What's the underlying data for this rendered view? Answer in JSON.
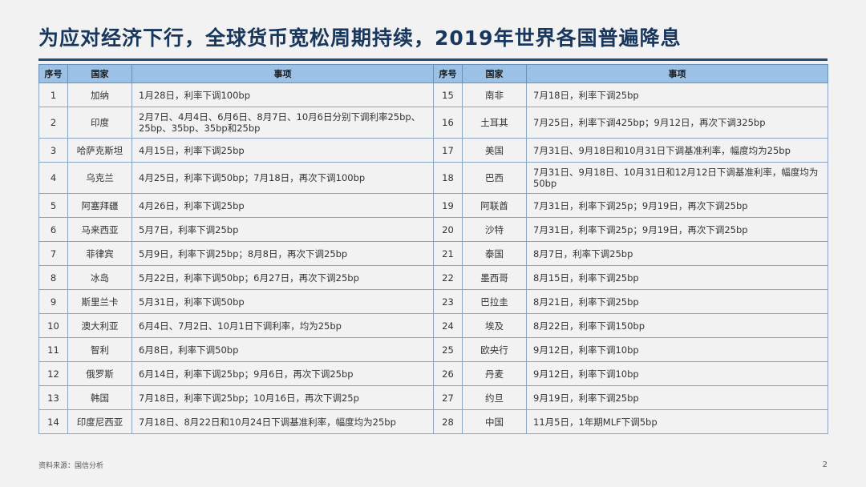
{
  "title": "为应对经济下行，全球货币宽松周期持续，2019年世界各国普遍降息",
  "headers": [
    "序号",
    "国家",
    "事项",
    "序号",
    "国家",
    "事项"
  ],
  "rows": [
    {
      "left": {
        "no": "1",
        "country": "加纳",
        "item": "1月28日，利率下调100bp"
      },
      "right": {
        "no": "15",
        "country": "南非",
        "item": "7月18日，利率下调25bp"
      }
    },
    {
      "left": {
        "no": "2",
        "country": "印度",
        "item": "2月7日、4月4日、6月6日、8月7日、10月6日分别下调利率25bp、25bp、35bp、35bp和25bp"
      },
      "right": {
        "no": "16",
        "country": "土耳其",
        "item": "7月25日，利率下调425bp；9月12日，再次下调325bp"
      }
    },
    {
      "left": {
        "no": "3",
        "country": "哈萨克斯坦",
        "item": "4月15日，利率下调25bp"
      },
      "right": {
        "no": "17",
        "country": "美国",
        "item": "7月31日、9月18日和10月31日下调基准利率，幅度均为25bp"
      }
    },
    {
      "left": {
        "no": "4",
        "country": "乌克兰",
        "item": "4月25日，利率下调50bp；7月18日，再次下调100bp"
      },
      "right": {
        "no": "18",
        "country": "巴西",
        "item": "7月31日、9月18日、10月31日和12月12日下调基准利率，幅度均为50bp"
      }
    },
    {
      "left": {
        "no": "5",
        "country": "阿塞拜疆",
        "item": "4月26日，利率下调25bp"
      },
      "right": {
        "no": "19",
        "country": "阿联酋",
        "item": "7月31日，利率下调25p；9月19日，再次下调25bp"
      }
    },
    {
      "left": {
        "no": "6",
        "country": "马来西亚",
        "item": "5月7日，利率下调25bp"
      },
      "right": {
        "no": "20",
        "country": "沙特",
        "item": "7月31日，利率下调25p；9月19日，再次下调25bp"
      }
    },
    {
      "left": {
        "no": "7",
        "country": "菲律宾",
        "item": "5月9日，利率下调25bp；8月8日，再次下调25bp"
      },
      "right": {
        "no": "21",
        "country": "泰国",
        "item": "8月7日，利率下调25bp"
      }
    },
    {
      "left": {
        "no": "8",
        "country": "冰岛",
        "item": "5月22日，利率下调50bp；6月27日，再次下调25bp"
      },
      "right": {
        "no": "22",
        "country": "墨西哥",
        "item": "8月15日，利率下调25bp"
      }
    },
    {
      "left": {
        "no": "9",
        "country": "斯里兰卡",
        "item": "5月31日，利率下调50bp"
      },
      "right": {
        "no": "23",
        "country": "巴拉圭",
        "item": "8月21日，利率下调25bp"
      }
    },
    {
      "left": {
        "no": "10",
        "country": "澳大利亚",
        "item": "6月4日、7月2日、10月1日下调利率，均为25bp"
      },
      "right": {
        "no": "24",
        "country": "埃及",
        "item": "8月22日，利率下调150bp"
      }
    },
    {
      "left": {
        "no": "11",
        "country": "智利",
        "item": "6月8日，利率下调50bp"
      },
      "right": {
        "no": "25",
        "country": "欧央行",
        "item": "9月12日，利率下调10bp"
      }
    },
    {
      "left": {
        "no": "12",
        "country": "俄罗斯",
        "item": "6月14日，利率下调25bp；9月6日，再次下调25bp"
      },
      "right": {
        "no": "26",
        "country": "丹麦",
        "item": "9月12日，利率下调10bp"
      }
    },
    {
      "left": {
        "no": "13",
        "country": "韩国",
        "item": "7月18日，利率下调25bp；10月16日，再次下调25p"
      },
      "right": {
        "no": "27",
        "country": "约旦",
        "item": "9月19日，利率下调25bp"
      }
    },
    {
      "left": {
        "no": "14",
        "country": "印度尼西亚",
        "item": "7月18日、8月22日和10月24日下调基准利率，幅度均为25bp"
      },
      "right": {
        "no": "28",
        "country": "中国",
        "item": "11月5日，1年期MLF下调5bp"
      }
    }
  ],
  "footer": "资料来源：国信分析",
  "page_number": "2"
}
